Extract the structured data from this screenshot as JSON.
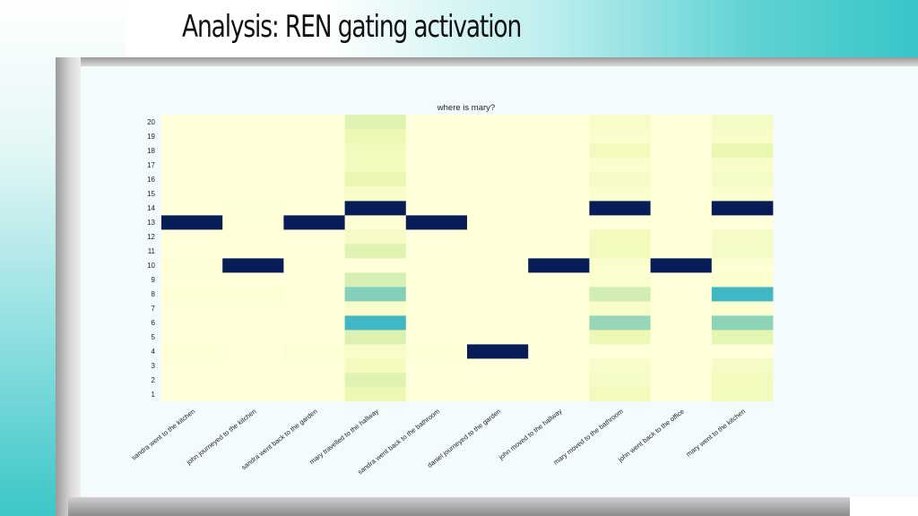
{
  "slide": {
    "title": "Analysis: REN gating activation"
  },
  "colors": {
    "low": "#ffffd9",
    "mid": "#c7e9b4",
    "teal": "#41b6c4",
    "blue": "#1d91c0",
    "high": "#081d58"
  },
  "chart_data": {
    "type": "heatmap",
    "title": "where is mary?",
    "xlabel": "",
    "ylabel": "",
    "categories": [
      "sandra went to the kitchen",
      "john journeyed to the kitchen",
      "sandra went back to the garden",
      "mary travelled to the hallway",
      "sandra went back to the bathroom",
      "daniel journeyed to the garden",
      "john moved to the hallway",
      "mary moved to the bathroom",
      "john went back to the office",
      "mary went to the kitchen"
    ],
    "y": [
      1,
      2,
      3,
      4,
      5,
      6,
      7,
      8,
      9,
      10,
      11,
      12,
      13,
      14,
      15,
      16,
      17,
      18,
      19,
      20
    ],
    "vmin": 0,
    "vmax": 1,
    "values": [
      [
        0.0,
        0.0,
        0.0,
        0.14,
        0.0,
        0.0,
        0.0,
        0.1,
        0.0,
        0.1
      ],
      [
        0.0,
        0.0,
        0.0,
        0.2,
        0.0,
        0.0,
        0.0,
        0.08,
        0.0,
        0.1
      ],
      [
        0.0,
        0.0,
        0.0,
        0.1,
        0.0,
        0.0,
        0.0,
        0.06,
        0.0,
        0.08
      ],
      [
        0.02,
        0.0,
        0.02,
        0.06,
        0.02,
        1.0,
        0.0,
        0.0,
        0.0,
        0.0
      ],
      [
        0.0,
        0.0,
        0.0,
        0.22,
        0.0,
        0.0,
        0.0,
        0.14,
        0.0,
        0.18
      ],
      [
        0.0,
        0.0,
        0.0,
        0.6,
        0.0,
        0.0,
        0.0,
        0.4,
        0.0,
        0.42
      ],
      [
        0.0,
        0.0,
        0.0,
        0.06,
        0.0,
        0.0,
        0.0,
        0.06,
        0.0,
        0.04
      ],
      [
        0.02,
        0.02,
        0.0,
        0.44,
        0.0,
        0.0,
        0.0,
        0.26,
        0.0,
        0.6
      ],
      [
        0.0,
        0.0,
        0.0,
        0.24,
        0.0,
        0.0,
        0.0,
        0.04,
        0.0,
        0.04
      ],
      [
        0.01,
        1.0,
        0.0,
        0.0,
        0.0,
        0.0,
        1.0,
        0.04,
        1.0,
        0.02
      ],
      [
        0.0,
        0.0,
        0.0,
        0.2,
        0.0,
        0.0,
        0.0,
        0.1,
        0.0,
        0.08
      ],
      [
        0.0,
        0.0,
        0.0,
        0.08,
        0.0,
        0.0,
        0.0,
        0.1,
        0.0,
        0.08
      ],
      [
        1.0,
        0.0,
        1.0,
        0.02,
        1.0,
        0.0,
        0.0,
        0.0,
        0.0,
        0.0
      ],
      [
        0.0,
        0.01,
        0.0,
        1.0,
        0.0,
        0.0,
        0.0,
        1.0,
        0.0,
        1.0
      ],
      [
        0.0,
        0.0,
        0.0,
        0.06,
        0.0,
        0.0,
        0.0,
        0.04,
        0.0,
        0.04
      ],
      [
        0.0,
        0.0,
        0.0,
        0.16,
        0.0,
        0.0,
        0.0,
        0.08,
        0.0,
        0.08
      ],
      [
        0.0,
        0.0,
        0.0,
        0.1,
        0.0,
        0.0,
        0.0,
        0.04,
        0.0,
        0.06
      ],
      [
        0.0,
        0.0,
        0.0,
        0.1,
        0.0,
        0.0,
        0.0,
        0.1,
        0.0,
        0.16
      ],
      [
        0.0,
        0.0,
        0.0,
        0.14,
        0.0,
        0.0,
        0.0,
        0.04,
        0.0,
        0.06
      ],
      [
        0.0,
        0.0,
        0.0,
        0.2,
        0.0,
        0.0,
        0.0,
        0.06,
        0.0,
        0.08
      ]
    ],
    "colorbar": false
  }
}
